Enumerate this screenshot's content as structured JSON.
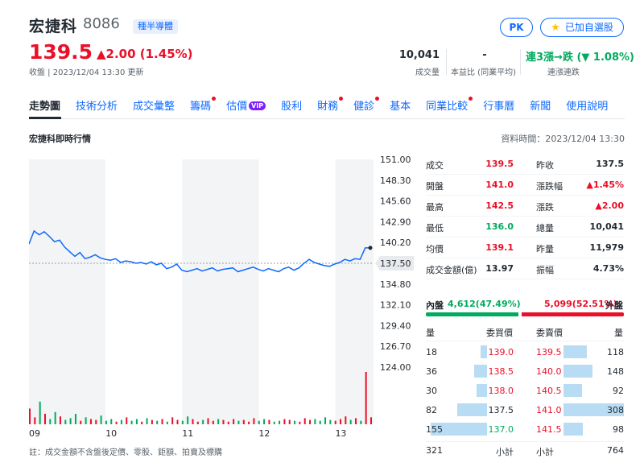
{
  "header": {
    "name": "宏捷科",
    "code": "8086",
    "sector": "種半導體",
    "pk_label": "PK",
    "watchlist_label": "已加自選股",
    "price": "139.5",
    "change": "▲2.00 (1.45%)",
    "update_time": "收盤 | 2023/12/04 13:30 更新",
    "volume_value": "10,041",
    "volume_label": "成交量",
    "pe_value": "-",
    "pe_label": "本益比 (同業平均)",
    "streak_value": "連3漲→跌 (▼ 1.08%)",
    "streak_label": "連漲連跌"
  },
  "tabs": [
    {
      "label": "走勢圖"
    },
    {
      "label": "技術分析"
    },
    {
      "label": "成交彙整"
    },
    {
      "label": "籌碼"
    },
    {
      "label": "估價"
    },
    {
      "label": "股利"
    },
    {
      "label": "財務"
    },
    {
      "label": "健診"
    },
    {
      "label": "基本"
    },
    {
      "label": "同業比較"
    },
    {
      "label": "行事曆"
    },
    {
      "label": "新聞"
    },
    {
      "label": "使用說明"
    }
  ],
  "vip_label": "VIP",
  "section": {
    "title": "宏捷科即時行情",
    "data_time": "資料時間：2023/12/04 13:30"
  },
  "chart_data": {
    "type": "line",
    "x_ticks": [
      "09",
      "10",
      "11",
      "12",
      "13"
    ],
    "y_ticks": [
      "151.00",
      "148.30",
      "145.60",
      "142.90",
      "140.20",
      "137.50",
      "134.80",
      "132.10",
      "129.40",
      "126.70",
      "124.00"
    ],
    "ylim": [
      124.0,
      151.0
    ],
    "reference_price": 137.5,
    "reference_label": "137.50",
    "series": [
      {
        "values": [
          140.0,
          141.7,
          141.2,
          141.6,
          141.0,
          140.3,
          140.5,
          139.6,
          139.0,
          138.4,
          138.9,
          138.1,
          138.3,
          138.6,
          138.2,
          138.0,
          137.9,
          138.1,
          137.6,
          137.8,
          137.7,
          137.5,
          137.6,
          137.4,
          137.7,
          137.3,
          137.5,
          136.8,
          137.0,
          137.4,
          136.6,
          136.4,
          136.6,
          136.8,
          136.5,
          136.7,
          136.9,
          136.5,
          136.7,
          136.8,
          136.9,
          136.4,
          136.6,
          136.8,
          137.0,
          136.7,
          136.5,
          136.8,
          136.6,
          136.4,
          136.8,
          137.0,
          136.6,
          136.9,
          137.5,
          138.0,
          137.6,
          137.4,
          137.2,
          137.1,
          137.4,
          137.6,
          138.0,
          137.8,
          138.1,
          138.0,
          139.5,
          139.5
        ]
      }
    ],
    "volume": [
      18,
      8,
      26,
      12,
      6,
      14,
      9,
      5,
      7,
      12,
      4,
      8,
      6,
      5,
      10,
      4,
      6,
      3,
      5,
      8,
      4,
      6,
      3,
      7,
      5,
      4,
      6,
      3,
      8,
      5,
      4,
      9,
      6,
      3,
      5,
      7,
      4,
      6,
      5,
      3,
      6,
      4,
      5,
      3,
      7,
      4,
      6,
      5,
      3,
      4,
      6,
      5,
      4,
      3,
      7,
      5,
      6,
      4,
      8,
      5,
      4,
      6,
      9,
      5,
      7,
      4,
      60,
      8
    ]
  },
  "quote": {
    "rows": [
      [
        {
          "label": "成交",
          "value": "139.5",
          "color": "#eb0f29"
        },
        {
          "label": "昨收",
          "value": "137.5",
          "color": "#232a31"
        }
      ],
      [
        {
          "label": "開盤",
          "value": "141.0",
          "color": "#eb0f29"
        },
        {
          "label": "漲跌幅",
          "value": "▲1.45%",
          "color": "#eb0f29"
        }
      ],
      [
        {
          "label": "最高",
          "value": "142.5",
          "color": "#eb0f29"
        },
        {
          "label": "漲跌",
          "value": "▲2.00",
          "color": "#eb0f29"
        }
      ],
      [
        {
          "label": "最低",
          "value": "136.0",
          "color": "#00ab5e"
        },
        {
          "label": "總量",
          "value": "10,041",
          "color": "#232a31"
        }
      ],
      [
        {
          "label": "均價",
          "value": "139.1",
          "color": "#eb0f29"
        },
        {
          "label": "昨量",
          "value": "11,979",
          "color": "#232a31"
        }
      ],
      [
        {
          "label": "成交金額(億)",
          "value": "13.97",
          "color": "#232a31"
        },
        {
          "label": "振幅",
          "value": "4.73%",
          "color": "#232a31"
        }
      ]
    ]
  },
  "inout": {
    "inner_label": "內盤",
    "inner_value": "4,612(47.49%)",
    "inner_fraction": 0.4749,
    "outer_value": "5,099(52.51%)",
    "outer_label": "外盤"
  },
  "orderbook": {
    "headers": {
      "bid_qty": "量",
      "bid_price": "委買價",
      "ask_price": "委賣價",
      "ask_qty": "量"
    },
    "rows": [
      {
        "bid_qty": "18",
        "bid_price": "139.0",
        "bid_color": "#eb0f29",
        "bid_frac": 0.12,
        "ask_price": "139.5",
        "ask_color": "#eb0f29",
        "ask_qty": "118",
        "ask_frac": 0.38
      },
      {
        "bid_qty": "36",
        "bid_price": "138.5",
        "bid_color": "#eb0f29",
        "bid_frac": 0.23,
        "ask_price": "140.0",
        "ask_color": "#eb0f29",
        "ask_qty": "148",
        "ask_frac": 0.48
      },
      {
        "bid_qty": "30",
        "bid_price": "138.0",
        "bid_color": "#eb0f29",
        "bid_frac": 0.19,
        "ask_price": "140.5",
        "ask_color": "#eb0f29",
        "ask_qty": "92",
        "ask_frac": 0.3
      },
      {
        "bid_qty": "82",
        "bid_price": "137.5",
        "bid_color": "#232a31",
        "bid_frac": 0.53,
        "ask_price": "141.0",
        "ask_color": "#eb0f29",
        "ask_qty": "308",
        "ask_frac": 1.0
      },
      {
        "bid_qty": "155",
        "bid_price": "137.0",
        "bid_color": "#00ab5e",
        "bid_frac": 1.0,
        "ask_price": "141.5",
        "ask_color": "#eb0f29",
        "ask_qty": "98",
        "ask_frac": 0.32
      }
    ],
    "bid_total": "321",
    "subtotal_label": "小計",
    "ask_total": "764"
  },
  "footnote": "註：成交金額不含盤後定價、零股、鉅額、拍賣及標購"
}
